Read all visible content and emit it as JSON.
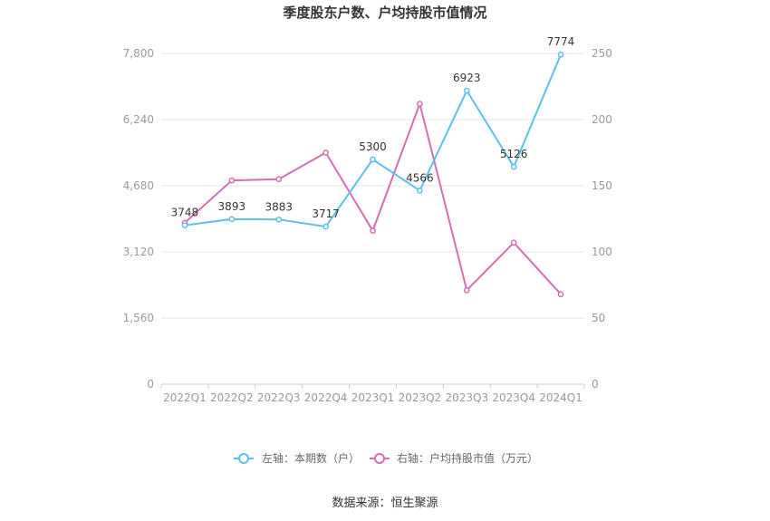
{
  "chart_data": {
    "type": "line",
    "title": "季度股东户数、户均持股市值情况",
    "categories": [
      "2022Q1",
      "2022Q2",
      "2022Q3",
      "2022Q4",
      "2023Q1",
      "2023Q2",
      "2023Q3",
      "2023Q4",
      "2024Q1"
    ],
    "left_axis": {
      "min": 0,
      "max": 7800,
      "ticks": [
        "0",
        "1,560",
        "3,120",
        "4,680",
        "6,240",
        "7,800"
      ]
    },
    "right_axis": {
      "min": 0,
      "max": 250,
      "ticks": [
        "0",
        "50",
        "100",
        "150",
        "200",
        "250"
      ]
    },
    "series": [
      {
        "name": "左轴：本期数（户）",
        "axis": "left",
        "color": "#5bc0eb",
        "values": [
          3748,
          3893,
          3883,
          3717,
          5300,
          4566,
          6923,
          5126,
          7774
        ],
        "labels": [
          "3748",
          "3893",
          "3883",
          "3717",
          "5300",
          "4566",
          "6923",
          "5126",
          "7774"
        ]
      },
      {
        "name": "右轴：户均持股市值（万元）",
        "axis": "right",
        "color": "#d26eb4",
        "values": [
          122,
          154,
          155,
          175,
          116,
          212,
          71,
          107,
          68
        ]
      }
    ],
    "grid": true,
    "legend_position": "bottom"
  },
  "source": "数据来源：恒生聚源"
}
